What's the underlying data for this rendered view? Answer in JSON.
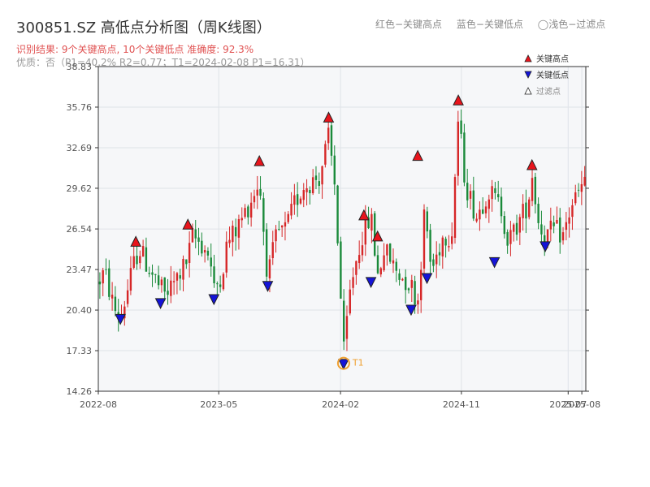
{
  "title": "300851.SZ 高低点分析图（周K线图）",
  "summary": "识别结果: 9个关键高点, 10个关键低点  准确度: 92.3%",
  "quality": "优质：否（P1=40.2%  R2=0.77；T1=2024-02-08 P1=16.31）",
  "top_legend": {
    "red": "红色−关键高点",
    "blue": "蓝色−关键低点",
    "light": "◯浅色−过滤点"
  },
  "colors": {
    "up": "#d62728",
    "down": "#1a8a3a",
    "high_marker": "#e8141c",
    "low_marker": "#1414d8",
    "t1": "#f0a030",
    "plot_bg": "#f6f7f9",
    "grid": "#dfe3e8"
  },
  "chart_data": {
    "type": "candlestick",
    "ylim": [
      14.26,
      38.83
    ],
    "y_ticks": [
      "14.26",
      "17.33",
      "20.40",
      "23.47",
      "26.54",
      "29.62",
      "32.69",
      "35.76",
      "38.83"
    ],
    "x_range": [
      "2022-08-01",
      "2025-08-10"
    ],
    "x_ticks": [
      {
        "date": "2022-08-01",
        "label": "2022-08"
      },
      {
        "date": "2023-05-01",
        "label": "2023-05"
      },
      {
        "date": "2024-02-01",
        "label": "2024-02"
      },
      {
        "date": "2024-11-01",
        "label": "2024-11"
      },
      {
        "date": "2025-07-01",
        "label": "2025-07"
      },
      {
        "date": "2025-08-01",
        "label": "2025-08"
      }
    ],
    "legend": [
      "关键高点",
      "关键低点",
      "过滤点"
    ],
    "t1_label": "T1",
    "t1": {
      "date": "2024-02-08",
      "value": 16.31
    },
    "anchors": [
      [
        "2022-08-01",
        22.5
      ],
      [
        "2022-08-15",
        23.3
      ],
      [
        "2022-09-05",
        20.6
      ],
      [
        "2022-09-20",
        19.7
      ],
      [
        "2022-10-20",
        23.8
      ],
      [
        "2022-11-01",
        25.1
      ],
      [
        "2022-11-20",
        23.8
      ],
      [
        "2022-12-20",
        22.0
      ],
      [
        "2023-01-01",
        21.5
      ],
      [
        "2023-01-20",
        22.5
      ],
      [
        "2023-02-20",
        24.2
      ],
      [
        "2023-03-01",
        26.0
      ],
      [
        "2023-03-20",
        25.5
      ],
      [
        "2023-04-10",
        24.6
      ],
      [
        "2023-04-20",
        21.8
      ],
      [
        "2023-05-10",
        23.5
      ],
      [
        "2023-05-20",
        25.5
      ],
      [
        "2023-06-10",
        26.5
      ],
      [
        "2023-07-10",
        28.5
      ],
      [
        "2023-08-01",
        30.2
      ],
      [
        "2023-08-20",
        22.8
      ],
      [
        "2023-09-10",
        26.2
      ],
      [
        "2023-10-01",
        26.5
      ],
      [
        "2023-10-20",
        28.5
      ],
      [
        "2023-11-10",
        29.8
      ],
      [
        "2023-12-15",
        30.5
      ],
      [
        "2024-01-05",
        33.5
      ],
      [
        "2024-01-20",
        29.5
      ],
      [
        "2024-02-08",
        17.0
      ],
      [
        "2024-02-25",
        22.5
      ],
      [
        "2024-03-20",
        26.0
      ],
      [
        "2024-04-10",
        27.5
      ],
      [
        "2024-04-25",
        23.0
      ],
      [
        "2024-05-10",
        25.0
      ],
      [
        "2024-06-10",
        23.2
      ],
      [
        "2024-07-10",
        22.3
      ],
      [
        "2024-07-25",
        21.0
      ],
      [
        "2024-08-10",
        28.0
      ],
      [
        "2024-08-25",
        23.3
      ],
      [
        "2024-09-20",
        26.0
      ],
      [
        "2024-10-10",
        26.2
      ],
      [
        "2024-10-25",
        35.0
      ],
      [
        "2024-11-10",
        30.0
      ],
      [
        "2024-12-05",
        27.5
      ],
      [
        "2025-01-01",
        29.5
      ],
      [
        "2025-02-01",
        28.0
      ],
      [
        "2025-02-15",
        25.5
      ],
      [
        "2025-03-10",
        27.0
      ],
      [
        "2025-04-01",
        28.5
      ],
      [
        "2025-04-10",
        30.8
      ],
      [
        "2025-04-25",
        27.0
      ],
      [
        "2025-05-10",
        26.0
      ],
      [
        "2025-06-01",
        26.5
      ],
      [
        "2025-06-20",
        26.0
      ],
      [
        "2025-07-10",
        28.5
      ],
      [
        "2025-08-08",
        30.0
      ]
    ],
    "key_highs": [
      {
        "date": "2022-10-25",
        "value": 25.6
      },
      {
        "date": "2023-02-20",
        "value": 26.9
      },
      {
        "date": "2023-08-01",
        "value": 31.7
      },
      {
        "date": "2024-01-05",
        "value": 35.0
      },
      {
        "date": "2024-03-25",
        "value": 27.6
      },
      {
        "date": "2024-04-25",
        "value": 26.0
      },
      {
        "date": "2024-07-25",
        "value": 32.1
      },
      {
        "date": "2024-10-25",
        "value": 36.3
      },
      {
        "date": "2025-04-10",
        "value": 31.4
      }
    ],
    "key_lows": [
      {
        "date": "2022-09-20",
        "value": 19.7
      },
      {
        "date": "2022-12-20",
        "value": 20.9
      },
      {
        "date": "2023-04-20",
        "value": 21.2
      },
      {
        "date": "2023-08-20",
        "value": 22.2
      },
      {
        "date": "2024-02-08",
        "value": 16.3
      },
      {
        "date": "2024-04-10",
        "value": 22.5
      },
      {
        "date": "2024-07-10",
        "value": 20.4
      },
      {
        "date": "2024-08-15",
        "value": 22.8
      },
      {
        "date": "2025-01-15",
        "value": 24.0
      },
      {
        "date": "2025-05-10",
        "value": 25.2
      }
    ]
  }
}
